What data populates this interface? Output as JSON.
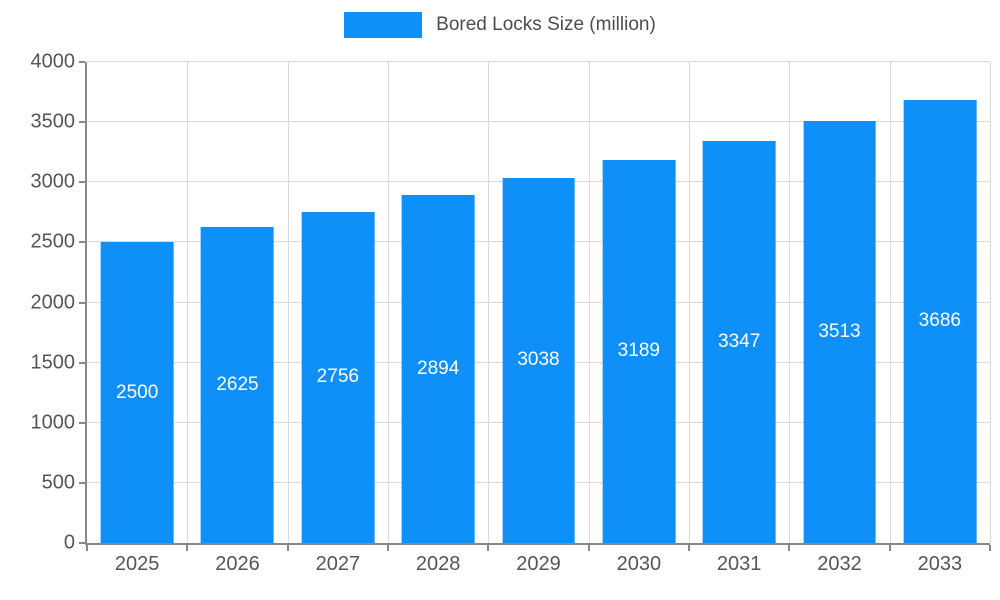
{
  "legend": {
    "label": "Bored Locks Size (million)"
  },
  "colors": {
    "bar": "#0e90f8",
    "grid": "#d9d9d9",
    "axis": "#888888",
    "tick_text": "#555555",
    "value_text": "#ffffff"
  },
  "chart_data": {
    "type": "bar",
    "title": "",
    "xlabel": "",
    "ylabel": "",
    "categories": [
      "2025",
      "2026",
      "2027",
      "2028",
      "2029",
      "2030",
      "2031",
      "2032",
      "2033"
    ],
    "series": [
      {
        "name": "Bored Locks Size (million)",
        "values": [
          2500,
          2625,
          2756,
          2894,
          3038,
          3189,
          3347,
          3513,
          3686
        ]
      }
    ],
    "ylim": [
      0,
      4000
    ],
    "ytick_step": 500,
    "grid": true,
    "legend_position": "top",
    "bar_width_fraction": 0.725,
    "value_labels": "inside-center"
  }
}
